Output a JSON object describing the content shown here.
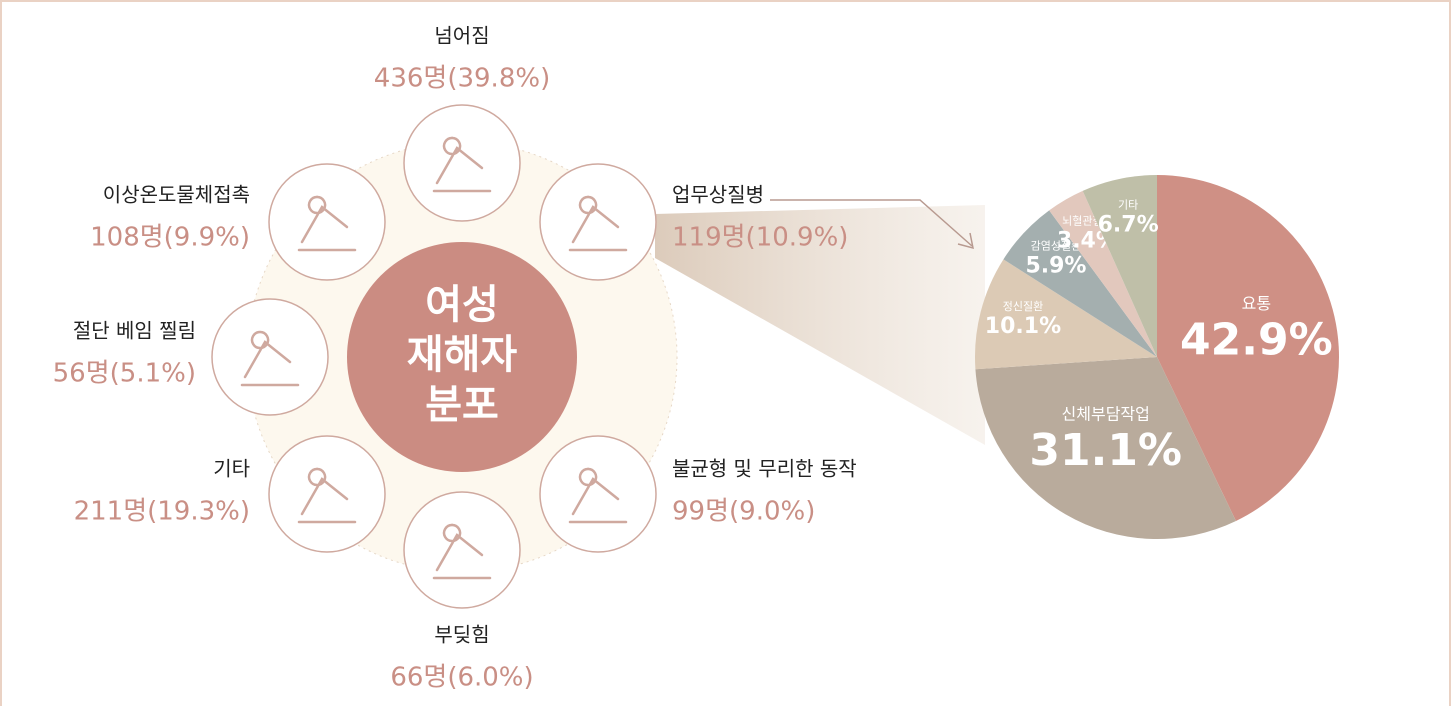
{
  "center_title_lines": [
    "여성",
    "재해자",
    "분포"
  ],
  "items": [
    {
      "label": "넘어짐",
      "value": "436명(39.8%)"
    },
    {
      "label": "업무상질병",
      "value": "119명(10.9%)"
    },
    {
      "label": "불균형 및 무리한 동작",
      "value": "99명(9.0%)"
    },
    {
      "label": "부딪힘",
      "value": "66명(6.0%)"
    },
    {
      "label": "기타",
      "value": "211명(19.3%)"
    },
    {
      "label": "절단 베임 찔림",
      "value": "56명(5.1%)"
    },
    {
      "label": "이상온도물체접촉",
      "value": "108명(9.9%)"
    }
  ],
  "chart_data": {
    "type": "pie",
    "categories": [
      "요통",
      "신체부담작업",
      "정신질환",
      "감염성질환",
      "뇌혈관질환",
      "기타"
    ],
    "values": [
      42.9,
      31.1,
      10.1,
      5.9,
      3.4,
      6.7
    ],
    "value_labels": [
      "42.9%",
      "31.1%",
      "10.1%",
      "5.9%",
      "3.4%",
      "6.7%"
    ],
    "colors": [
      "#cf9085",
      "#b9ab9c",
      "#dccab5",
      "#a4afaf",
      "#e2c8bd",
      "#bfbfa8"
    ]
  }
}
